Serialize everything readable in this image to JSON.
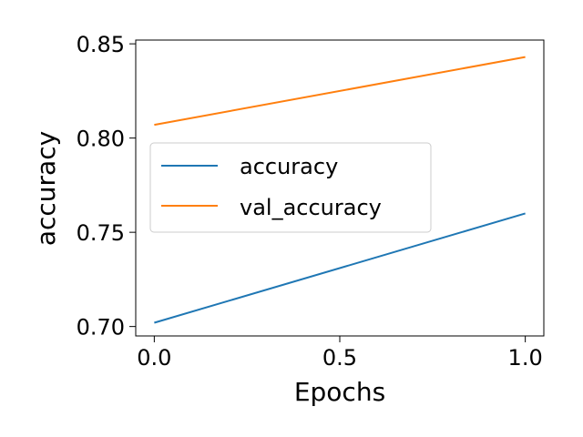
{
  "chart_data": {
    "type": "line",
    "xlabel": "Epochs",
    "ylabel": "accuracy",
    "x": [
      0.0,
      1.0
    ],
    "xlim": [
      -0.05,
      1.05
    ],
    "ylim": [
      0.695,
      0.852
    ],
    "xticks": [
      "0.0",
      "0.5",
      "1.0"
    ],
    "yticks": [
      "0.70",
      "0.75",
      "0.80",
      "0.85"
    ],
    "grid": false,
    "legend_position": "center-left",
    "series": [
      {
        "name": "accuracy",
        "values": [
          0.702,
          0.76
        ],
        "color": "#1f77b4"
      },
      {
        "name": "val_accuracy",
        "values": [
          0.807,
          0.843
        ],
        "color": "#ff7f0e"
      }
    ]
  }
}
